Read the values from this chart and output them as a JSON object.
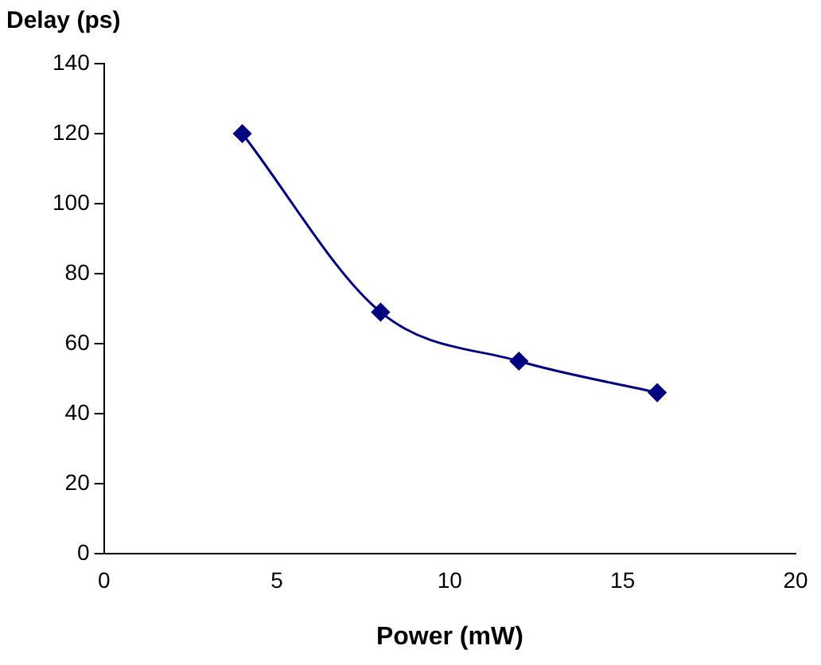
{
  "chart_data": {
    "type": "line",
    "xlabel": "Power (mW)",
    "ylabel": "Delay (ps)",
    "x": [
      4,
      8,
      12,
      16
    ],
    "series": [
      {
        "color": "#000080",
        "values": [
          120,
          69,
          55,
          46
        ]
      }
    ],
    "xlim": [
      0,
      20
    ],
    "xticks": [
      0,
      5,
      10,
      15,
      20
    ],
    "ylim": [
      0,
      140
    ],
    "yticks": [
      0,
      20,
      40,
      60,
      80,
      100,
      120,
      140
    ],
    "grid": false,
    "legend": false,
    "marker": "diamond",
    "line_style": "solid"
  }
}
